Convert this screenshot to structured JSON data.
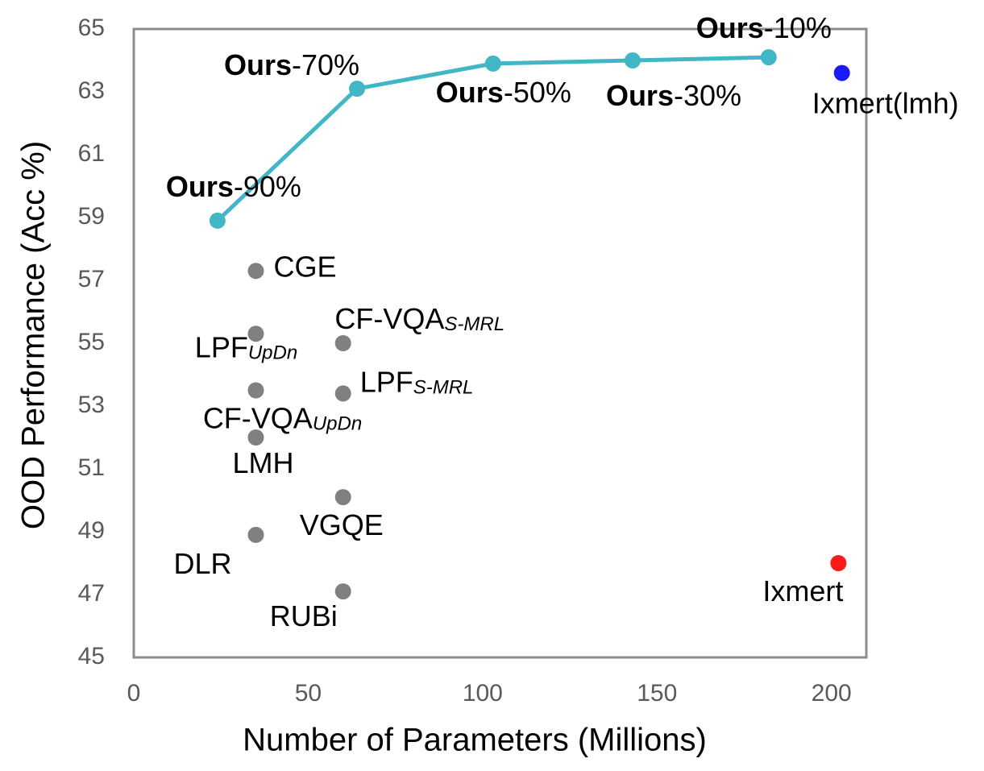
{
  "chart_data": {
    "type": "scatter",
    "x_label": "Number of Parameters (Millions)",
    "y_label": "OOD Performance (Acc %)",
    "xlim": [
      0,
      210
    ],
    "xticks": [
      0,
      50,
      100,
      150,
      200
    ],
    "ylim": [
      45,
      65
    ],
    "yticks": [
      45,
      47,
      49,
      51,
      53,
      55,
      57,
      59,
      61,
      63,
      65
    ],
    "series": [
      {
        "kind": "line",
        "color": "#41b6c4",
        "x": [
          24,
          64,
          103,
          143,
          182
        ],
        "y": [
          58.9,
          63.1,
          63.9,
          64.0,
          64.1
        ],
        "labels": [
          {
            "bold": "Ours",
            "text": "-90%"
          },
          {
            "bold": "Ours",
            "text": "-70%"
          },
          {
            "bold": "Ours",
            "text": "-50%"
          },
          {
            "bold": "Ours",
            "text": "-30%"
          },
          {
            "bold": "Ours",
            "text": "-10%"
          }
        ]
      },
      {
        "kind": "points",
        "color": "#808080",
        "x": [
          35,
          35,
          60,
          35,
          60,
          35,
          60,
          35,
          60
        ],
        "y": [
          57.3,
          55.3,
          55.0,
          53.5,
          53.4,
          52.0,
          50.1,
          48.9,
          47.1
        ],
        "labels": [
          {
            "text": "CGE"
          },
          {
            "text": "LPF",
            "sub": "UpDn"
          },
          {
            "text": "CF-VQA",
            "sub": "S-MRL"
          },
          {
            "text": "CF-VQA",
            "sub": "UpDn"
          },
          {
            "text": "LPF",
            "sub": "S-MRL"
          },
          {
            "text": "LMH"
          },
          {
            "text": "VGQE"
          },
          {
            "text": "DLR"
          },
          {
            "text": "RUBi"
          }
        ]
      },
      {
        "kind": "points",
        "color": "#1a1aff",
        "x": [
          203
        ],
        "y": [
          63.6
        ],
        "labels": [
          {
            "text": "Ixmert(lmh)"
          }
        ]
      },
      {
        "kind": "points",
        "color": "#ff1a1a",
        "x": [
          202
        ],
        "y": [
          48.0
        ],
        "labels": [
          {
            "text": "Ixmert"
          }
        ]
      }
    ]
  }
}
